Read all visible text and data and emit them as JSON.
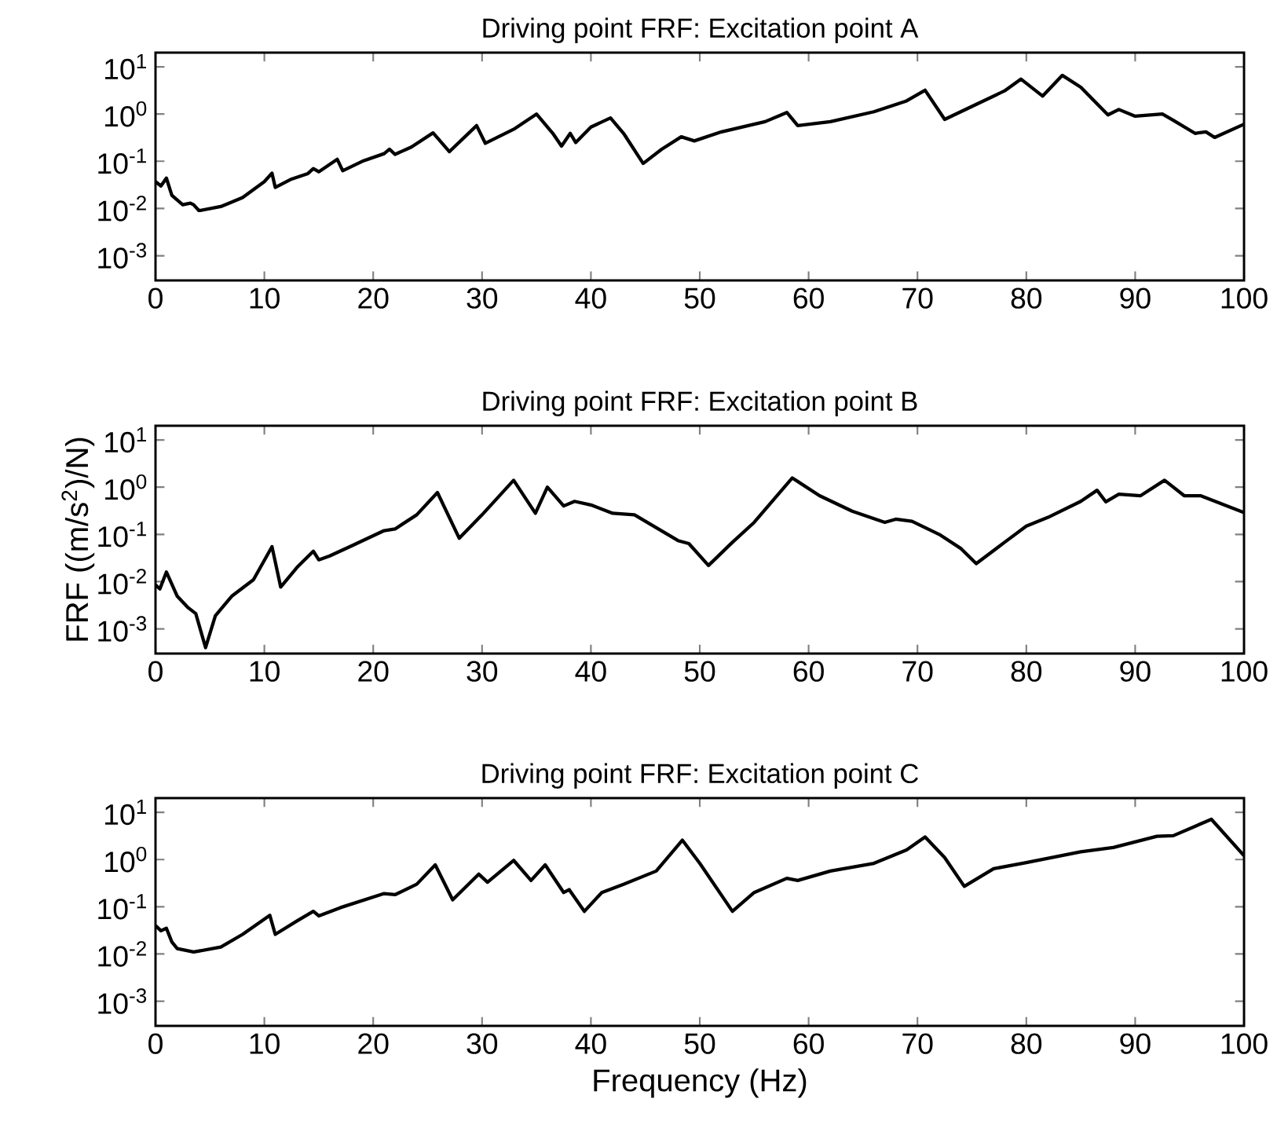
{
  "chart_data": [
    {
      "type": "line",
      "title": "Driving point FRF: Excitation point A",
      "log": true,
      "color": "#000000",
      "x": [
        0,
        0.5,
        1,
        1.5,
        2.5,
        3.2,
        3.5,
        4,
        6,
        8,
        10,
        10.7,
        11,
        12.5,
        14,
        14.5,
        15,
        16.7,
        17.2,
        19,
        21,
        21.5,
        22,
        23.5,
        25.5,
        27,
        29.5,
        30.3,
        33,
        35,
        36.5,
        37.3,
        38.1,
        38.6,
        40,
        41.8,
        43,
        44.8,
        46.5,
        48.3,
        49.5,
        52,
        56,
        58,
        59,
        62,
        66,
        69,
        70.7,
        72.5,
        75,
        78,
        79.5,
        81.5,
        83.3,
        85,
        87.5,
        88.5,
        90,
        92.5,
        93.5,
        95.5,
        96.5,
        97.3,
        100
      ],
      "values": [
        0.037,
        0.03,
        0.044,
        0.019,
        0.012,
        0.013,
        0.012,
        0.009,
        0.011,
        0.017,
        0.037,
        0.056,
        0.028,
        0.042,
        0.055,
        0.07,
        0.06,
        0.11,
        0.063,
        0.1,
        0.145,
        0.18,
        0.14,
        0.2,
        0.4,
        0.16,
        0.57,
        0.24,
        0.49,
        1.0,
        0.39,
        0.21,
        0.39,
        0.25,
        0.53,
        0.83,
        0.39,
        0.09,
        0.18,
        0.33,
        0.27,
        0.42,
        0.69,
        1.08,
        0.57,
        0.69,
        1.12,
        1.9,
        3.2,
        0.77,
        1.45,
        3.1,
        5.5,
        2.4,
        6.6,
        3.7,
        0.96,
        1.25,
        0.9,
        1.0,
        0.74,
        0.39,
        0.42,
        0.32,
        0.61
      ],
      "xlim": [
        0,
        100
      ],
      "xticks": [
        0,
        10,
        20,
        30,
        40,
        50,
        60,
        70,
        80,
        90,
        100
      ],
      "ylim": [
        0.0003,
        20
      ],
      "yticks": [
        {
          "value": 0.001,
          "label": "10$^{-3}$"
        },
        {
          "value": 0.01,
          "label": "10$^{-2}$"
        },
        {
          "value": 0.1,
          "label": "10$^{-1}$"
        },
        {
          "value": 1,
          "label": "10$^{0}$"
        },
        {
          "value": 10,
          "label": "10$^{1}$"
        }
      ]
    },
    {
      "type": "line",
      "title": "Driving point FRF: Excitation point B",
      "ylabel": "FRF ((m/s$^{2}$)/N)",
      "log": true,
      "color": "#000000",
      "x": [
        0,
        0.4,
        1,
        2,
        3,
        3.7,
        4.6,
        5.5,
        7,
        9,
        10.7,
        11.5,
        13,
        14.5,
        15,
        16,
        18,
        21,
        22,
        24,
        25.9,
        27.9,
        30,
        32.9,
        34.9,
        36,
        37.5,
        38.5,
        40,
        42,
        44,
        48,
        49,
        50.8,
        53,
        55,
        58.5,
        61,
        64,
        67,
        68,
        69.5,
        72,
        74,
        75.4,
        78,
        80,
        82,
        85,
        86.5,
        87.3,
        88.5,
        90.5,
        92.7,
        94.5,
        96,
        100
      ],
      "values": [
        0.0085,
        0.007,
        0.016,
        0.0049,
        0.0028,
        0.0021,
        0.0004,
        0.0019,
        0.0049,
        0.011,
        0.055,
        0.0077,
        0.02,
        0.044,
        0.029,
        0.035,
        0.057,
        0.12,
        0.13,
        0.26,
        0.77,
        0.083,
        0.26,
        1.4,
        0.28,
        1.0,
        0.4,
        0.5,
        0.42,
        0.28,
        0.26,
        0.074,
        0.064,
        0.022,
        0.068,
        0.18,
        1.57,
        0.66,
        0.31,
        0.18,
        0.21,
        0.19,
        0.1,
        0.05,
        0.024,
        0.068,
        0.15,
        0.23,
        0.5,
        0.86,
        0.49,
        0.71,
        0.66,
        1.4,
        0.66,
        0.66,
        0.29
      ],
      "xlim": [
        0,
        100
      ],
      "xticks": [
        0,
        10,
        20,
        30,
        40,
        50,
        60,
        70,
        80,
        90,
        100
      ],
      "ylim": [
        0.0003,
        20
      ],
      "yticks": [
        {
          "value": 0.001,
          "label": "10$^{-3}$"
        },
        {
          "value": 0.01,
          "label": "10$^{-2}$"
        },
        {
          "value": 0.1,
          "label": "10$^{-1}$"
        },
        {
          "value": 1,
          "label": "10$^{0}$"
        },
        {
          "value": 10,
          "label": "10$^{1}$"
        }
      ]
    },
    {
      "type": "line",
      "title": "Driving point FRF: Excitation point C",
      "xlabel": "Frequency (Hz)",
      "log": true,
      "color": "#000000",
      "x": [
        0,
        0.5,
        1,
        1.5,
        2,
        3.5,
        6,
        8,
        10.5,
        11,
        13,
        14.5,
        15,
        17,
        21,
        22,
        24,
        25.7,
        27.3,
        29.7,
        30.5,
        32.9,
        34.5,
        35.8,
        37.5,
        38,
        39.4,
        41,
        43,
        46,
        48.4,
        50,
        53,
        55,
        58,
        59,
        62,
        66,
        69,
        70.7,
        72.5,
        74.3,
        77,
        80,
        85,
        88,
        92,
        93.5,
        97,
        100
      ],
      "values": [
        0.04,
        0.031,
        0.035,
        0.018,
        0.013,
        0.011,
        0.014,
        0.026,
        0.066,
        0.026,
        0.05,
        0.08,
        0.064,
        0.096,
        0.19,
        0.18,
        0.3,
        0.77,
        0.14,
        0.49,
        0.33,
        0.96,
        0.36,
        0.77,
        0.2,
        0.23,
        0.08,
        0.2,
        0.3,
        0.57,
        2.57,
        0.83,
        0.08,
        0.2,
        0.4,
        0.36,
        0.57,
        0.83,
        1.6,
        3.0,
        1.1,
        0.27,
        0.64,
        0.86,
        1.46,
        1.8,
        3.1,
        3.2,
        7.1,
        1.2
      ],
      "xlim": [
        0,
        100
      ],
      "xticks": [
        0,
        10,
        20,
        30,
        40,
        50,
        60,
        70,
        80,
        90,
        100
      ],
      "ylim": [
        0.0003,
        20
      ],
      "yticks": [
        {
          "value": 0.001,
          "label": "10$^{-3}$"
        },
        {
          "value": 0.01,
          "label": "10$^{-2}$"
        },
        {
          "value": 0.1,
          "label": "10$^{-1}$"
        },
        {
          "value": 1,
          "label": "10$^{0}$"
        },
        {
          "value": 10,
          "label": "10$^{1}$"
        }
      ]
    }
  ]
}
